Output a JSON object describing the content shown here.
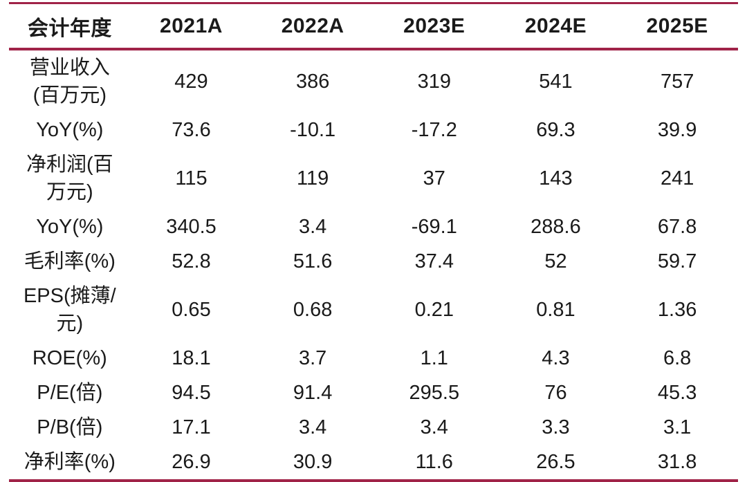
{
  "accent_color": "#A02348",
  "text_color": "#1a1a1a",
  "chart_data": {
    "type": "table",
    "columns": [
      "会计年度",
      "2021A",
      "2022A",
      "2023E",
      "2024E",
      "2025E"
    ],
    "rows": [
      {
        "label": "营业收入(百万元)",
        "label_display": "营业收入\n(百万元)",
        "values": [
          "429",
          "386",
          "319",
          "541",
          "757"
        ]
      },
      {
        "label": "YoY(%)",
        "label_display": "YoY(%)",
        "values": [
          "73.6",
          "-10.1",
          "-17.2",
          "69.3",
          "39.9"
        ]
      },
      {
        "label": "净利润(百万元)",
        "label_display": "净利润(百\n万元)",
        "values": [
          "115",
          "119",
          "37",
          "143",
          "241"
        ]
      },
      {
        "label": "YoY(%)",
        "label_display": "YoY(%)",
        "values": [
          "340.5",
          "3.4",
          "-69.1",
          "288.6",
          "67.8"
        ]
      },
      {
        "label": "毛利率(%)",
        "label_display": "毛利率(%)",
        "values": [
          "52.8",
          "51.6",
          "37.4",
          "52",
          "59.7"
        ]
      },
      {
        "label": "EPS(摊薄/元)",
        "label_display": "EPS(摊薄/\n元)",
        "values": [
          "0.65",
          "0.68",
          "0.21",
          "0.81",
          "1.36"
        ]
      },
      {
        "label": "ROE(%)",
        "label_display": "ROE(%)",
        "values": [
          "18.1",
          "3.7",
          "1.1",
          "4.3",
          "6.8"
        ]
      },
      {
        "label": "P/E(倍)",
        "label_display": "P/E(倍)",
        "values": [
          "94.5",
          "91.4",
          "295.5",
          "76",
          "45.3"
        ]
      },
      {
        "label": "P/B(倍)",
        "label_display": "P/B(倍)",
        "values": [
          "17.1",
          "3.4",
          "3.4",
          "3.3",
          "3.1"
        ]
      },
      {
        "label": "净利率(%)",
        "label_display": "净利率(%)",
        "values": [
          "26.9",
          "30.9",
          "11.6",
          "26.5",
          "31.8"
        ]
      }
    ]
  }
}
